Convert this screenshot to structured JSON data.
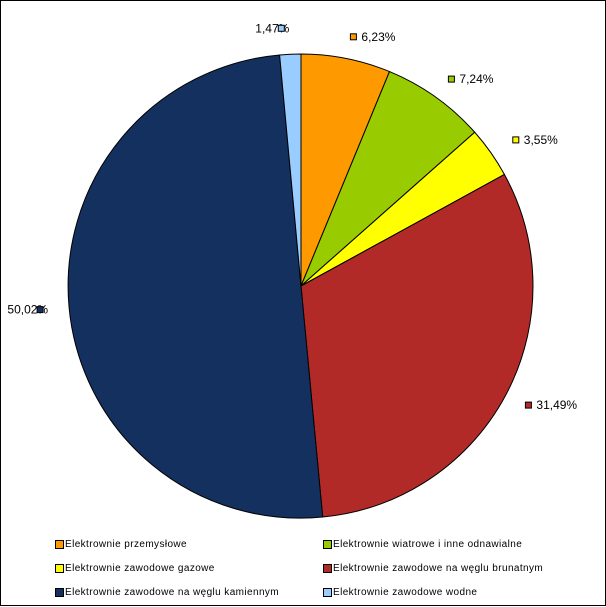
{
  "chart_data": {
    "type": "pie",
    "start_angle_deg": 0,
    "direction": "clockwise",
    "legend_position": "bottom",
    "slices": [
      {
        "label": "Elektrownie przemysłowe",
        "value": 6.23,
        "value_label": "6,23%",
        "color": "#FF9900"
      },
      {
        "label": "Elektrownie wiatrowe i inne odnawialne",
        "value": 7.24,
        "value_label": "7,24%",
        "color": "#99CC00"
      },
      {
        "label": "Elektrownie zawodowe gazowe",
        "value": 3.55,
        "value_label": "3,55%",
        "color": "#FFFF00"
      },
      {
        "label": "Elektrownie zawodowe na węglu brunatnym",
        "value": 31.49,
        "value_label": "31,49%",
        "color": "#B22A27"
      },
      {
        "label": "Elektrownie zawodowe na węglu kamiennym",
        "value": 50.02,
        "value_label": "50,02%",
        "color": "#13305F"
      },
      {
        "label": "Elektrownie zawodowe wodne",
        "value": 1.47,
        "value_label": "1,47%",
        "color": "#99CCFF"
      }
    ]
  }
}
